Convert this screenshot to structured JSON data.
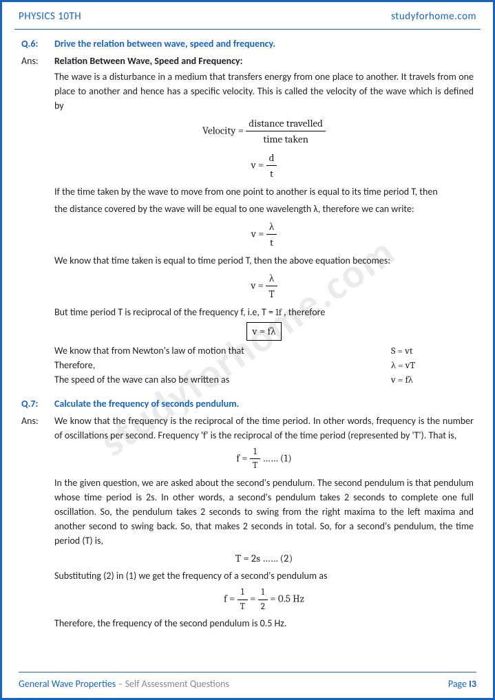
{
  "header": {
    "left": "PHYSICS 10TH",
    "right": "studyforhome.com"
  },
  "watermark": "studyforhome.com",
  "q6": {
    "label": "Q.6:",
    "title": "Drive the relation between wave, speed and frequency.",
    "ansLabel": "Ans:",
    "heading": "Relation Between Wave, Speed and Frequency:",
    "p1": "The wave is a disturbance in a medium that transfers energy from one place to another. It travels from one place to another and hence has a specific velocity. This is called the velocity of the wave which is defined by",
    "eq1a_lhs": "Velocity =",
    "eq1a_num": "distance travelled",
    "eq1a_den": "time taken",
    "eq1b_lhs": "v =",
    "eq1b_num": "d",
    "eq1b_den": "t",
    "p2": "If the time taken by the wave to move from one point to another is equal to its time period T, then",
    "p3": "the distance covered by the wave will be equal to one wavelength λ, therefore we can write:",
    "eq2_lhs": "v =",
    "eq2_num": "λ",
    "eq2_den": "t",
    "p4": "We know that time taken is equal to time period T, then the above equation becomes:",
    "eq3_lhs": "v =",
    "eq3_num": "λ",
    "eq3_den": "T",
    "p5a": "But time period T is reciprocal of the frequency f, i.e, T = ",
    "p5_num": "1",
    "p5_den": "f",
    "p5b": " , therefore",
    "eq4": "v = fλ",
    "r1a": "We know that from Newton's law of motion that",
    "r1b": "S = vt",
    "r2a": "Therefore,",
    "r2b": "λ = vT",
    "r3a": "The speed of the wave can also be written as",
    "r3b": "v = fλ"
  },
  "q7": {
    "label": "Q.7:",
    "title": "Calculate the frequency of seconds pendulum.",
    "ansLabel": "Ans:",
    "p1": "We know that the frequency is the reciprocal of the time period. In other words, frequency is the number of oscillations per second. Frequency 'f' is the reciprocal of the time period (represented by 'T'). That is,",
    "eq1_lhs": "f = ",
    "eq1_num": "1",
    "eq1_den": "T",
    "eq1_tail": "   …… (1)",
    "p2": "In the given question, we are asked about the second's pendulum. The second pendulum is that pendulum whose time period is 2s. In other words, a second's pendulum takes 2 seconds to complete one full oscillation. So, the pendulum takes 2 seconds to swing from the right maxima to the left maxima and another second to swing back. So, that makes 2 seconds in total. So, for a second's pendulum, the time period (T) is,",
    "eq2": "T =  2s     …… (2)",
    "p3": "Substituting (2) in (1) we get the frequency of a second's pendulum as",
    "eq3_lhs": "f =",
    "eq3a_num": "1",
    "eq3a_den": "T",
    "eq3_mid": "=",
    "eq3b_num": "1",
    "eq3b_den": "2",
    "eq3_tail": " = 0.5 Hz",
    "p4": "Therefore, the frequency of the second pendulum is 0.5 Hz."
  },
  "footer": {
    "title": "General Wave Properties",
    "sub": " – Self Assessment Questions",
    "pageWord": "Page ",
    "pageBar": "I",
    "pageNum": "3"
  }
}
